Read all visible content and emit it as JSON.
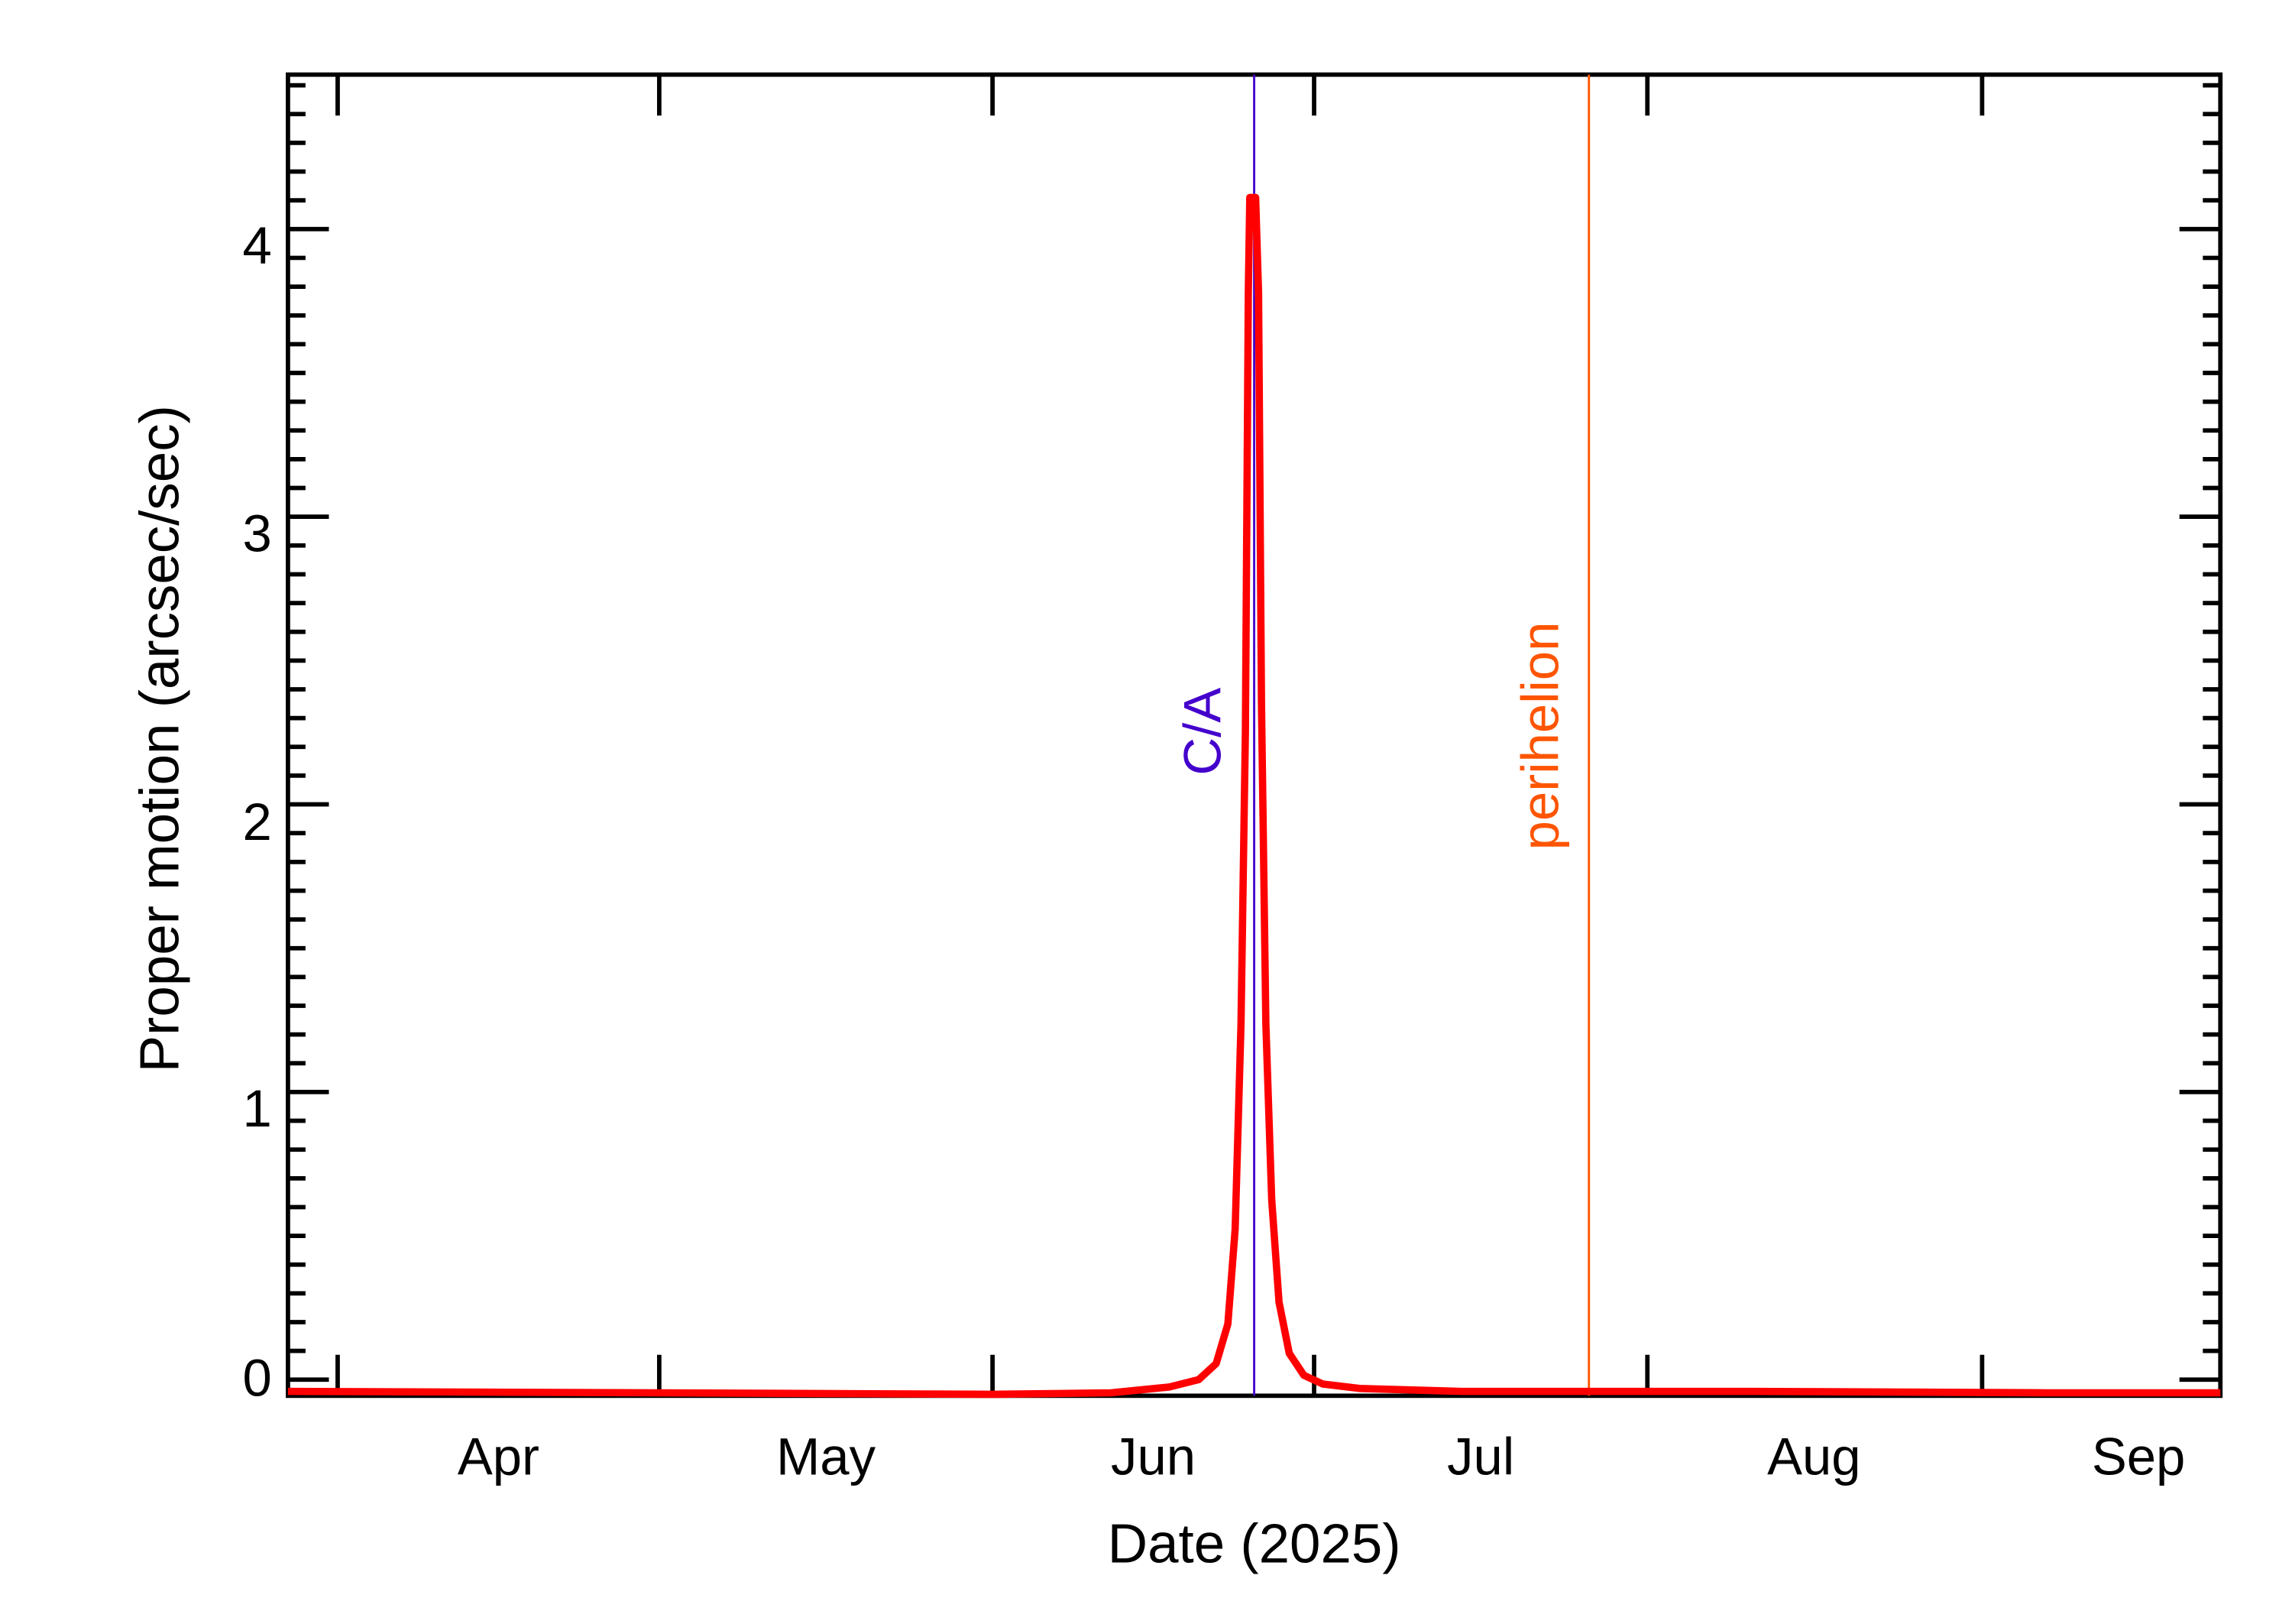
{
  "chart_data": {
    "type": "line",
    "title": "",
    "xlabel": "Date (2025)",
    "ylabel": "Proper motion (arcsec/sec)",
    "xlim": [
      "2025-03-16",
      "2025-09-11"
    ],
    "ylim": [
      -0.06,
      4.6
    ],
    "grid": false,
    "x_ticks": [
      "Apr",
      "May",
      "Jun",
      "Jul",
      "Aug",
      "Sep"
    ],
    "y_ticks": [
      "0",
      "1",
      "2",
      "3",
      "4"
    ],
    "series": [
      {
        "name": "Proper motion",
        "color": "#ff0000",
        "x": [
          "2025-03-16",
          "2025-04-01",
          "2025-05-01",
          "2025-05-20",
          "2025-06-01",
          "2025-06-05",
          "2025-06-08",
          "2025-06-10",
          "2025-06-11",
          "2025-06-12",
          "2025-06-13",
          "2025-06-14",
          "2025-06-15",
          "2025-06-17",
          "2025-06-20",
          "2025-07-01",
          "2025-08-01",
          "2025-09-11"
        ],
        "y": [
          0.02,
          0.02,
          0.01,
          0.01,
          0.02,
          0.08,
          0.3,
          1.8,
          4.15,
          4.15,
          1.9,
          0.7,
          0.3,
          0.1,
          0.04,
          0.02,
          0.02,
          0.01
        ]
      }
    ],
    "annotations": [
      {
        "label": "C/A",
        "date": "2025-06-11",
        "color": "#4400cc",
        "type": "vertical-line"
      },
      {
        "label": "perihelion",
        "date": "2025-07-13",
        "color": "#ff5500",
        "type": "vertical-line"
      }
    ]
  }
}
